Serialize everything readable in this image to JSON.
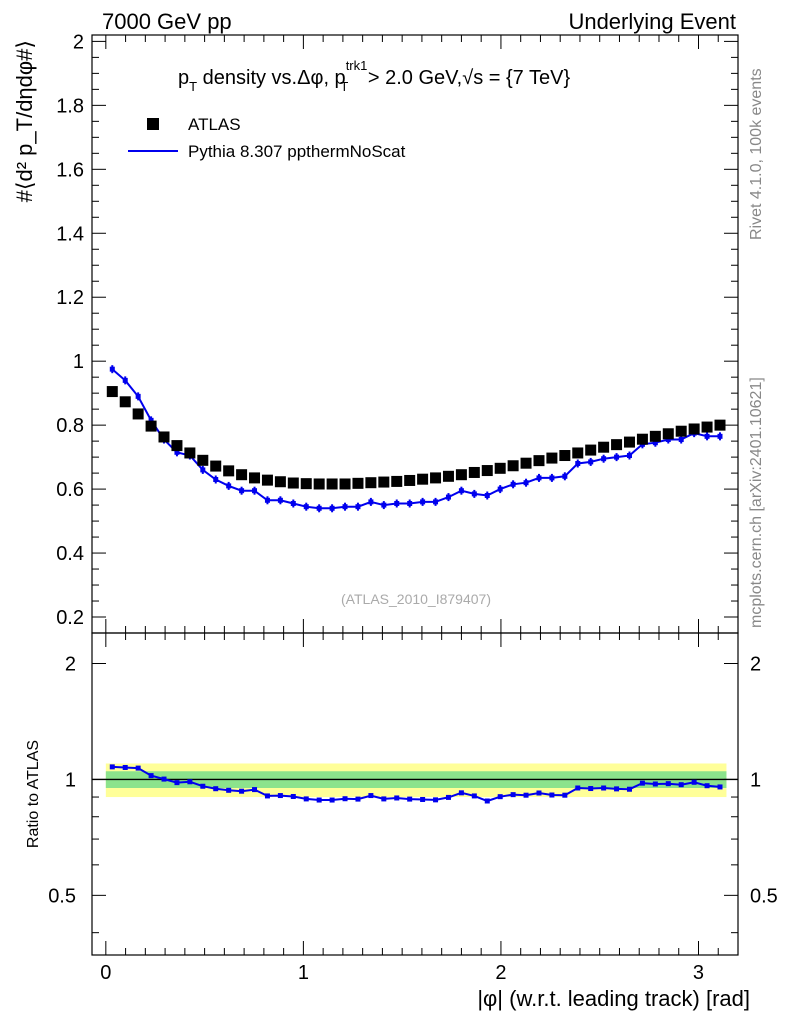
{
  "header": {
    "left": "7000 GeV pp",
    "right": "Underlying Event"
  },
  "side": {
    "rivet": "Rivet 4.1.0,  100k events",
    "mcplots": "mcplots.cern.ch [arXiv:2401.10621]"
  },
  "title": {
    "p": "p",
    "t": "T",
    "mid": " density vs.Δφ, p",
    "sup": "trk1",
    "sub": "T",
    "rest": " > 2.0 GeV,",
    "sqrt": "√s",
    "end": " = {7 TeV}"
  },
  "ylabel_main": "#⟨d² p_T/dηdφ#⟩",
  "ylabel_ratio": "Ratio to ATLAS",
  "xlabel": "|φ| (w.r.t. leading track) [rad]",
  "watermark": "(ATLAS_2010_I879407)",
  "legend": {
    "data": "ATLAS",
    "mc": "Pythia 8.307 ppthermNoScat"
  },
  "colors": {
    "data": "#000000",
    "mc": "#0000ee",
    "band_inner": "#8ce38c",
    "band_outer": "#ffff99"
  },
  "chart_data": {
    "type": "scatter",
    "title": "p_T density vs.Δφ, p_T^trk1 > 2.0 GeV, √s = {7 TeV}",
    "xlabel": "|φ| (w.r.t. leading track) [rad]",
    "ylabel": "#⟨d² p_T/dηdφ#⟩",
    "xlim": [
      -0.07,
      3.2
    ],
    "ylim": [
      0.15,
      2.02
    ],
    "ratio_ylim": [
      0.35,
      2.4
    ],
    "x_ticks": [
      "0",
      "1",
      "2",
      "3"
    ],
    "y_ticks": [
      "0.2",
      "0.4",
      "0.6",
      "0.8",
      "1",
      "1.2",
      "1.4",
      "1.6",
      "1.8",
      "2"
    ],
    "ratio_ticks": [
      "0.5",
      "1",
      "2"
    ],
    "x": [
      0.0327,
      0.0982,
      0.1636,
      0.2291,
      0.2945,
      0.36,
      0.4254,
      0.4909,
      0.5563,
      0.6218,
      0.6872,
      0.7527,
      0.8181,
      0.8836,
      0.949,
      1.0145,
      1.0799,
      1.1454,
      1.2108,
      1.2763,
      1.3417,
      1.4072,
      1.4726,
      1.5381,
      1.6035,
      1.669,
      1.7344,
      1.7999,
      1.8653,
      1.9308,
      1.9962,
      2.0617,
      2.1271,
      2.1926,
      2.258,
      2.3235,
      2.3889,
      2.4544,
      2.5198,
      2.5853,
      2.6507,
      2.7162,
      2.7816,
      2.8471,
      2.9125,
      2.978,
      3.0434,
      3.1089
    ],
    "series": [
      {
        "name": "ATLAS",
        "values": [
          0.905,
          0.873,
          0.835,
          0.797,
          0.763,
          0.736,
          0.713,
          0.69,
          0.672,
          0.657,
          0.645,
          0.635,
          0.628,
          0.623,
          0.619,
          0.617,
          0.616,
          0.616,
          0.616,
          0.618,
          0.62,
          0.622,
          0.624,
          0.627,
          0.631,
          0.635,
          0.64,
          0.645,
          0.652,
          0.658,
          0.665,
          0.673,
          0.681,
          0.689,
          0.697,
          0.705,
          0.713,
          0.722,
          0.731,
          0.739,
          0.747,
          0.756,
          0.765,
          0.773,
          0.781,
          0.788,
          0.794,
          0.8
        ]
      },
      {
        "name": "Pythia 8.307 ppthermNoScat",
        "values": [
          0.975,
          0.94,
          0.89,
          0.815,
          0.755,
          0.715,
          0.705,
          0.66,
          0.63,
          0.61,
          0.595,
          0.595,
          0.565,
          0.565,
          0.555,
          0.545,
          0.54,
          0.54,
          0.545,
          0.545,
          0.56,
          0.55,
          0.555,
          0.555,
          0.56,
          0.56,
          0.575,
          0.595,
          0.585,
          0.58,
          0.6,
          0.615,
          0.62,
          0.635,
          0.635,
          0.64,
          0.68,
          0.685,
          0.695,
          0.7,
          0.705,
          0.74,
          0.745,
          0.755,
          0.755,
          0.775,
          0.765,
          0.765
        ]
      }
    ],
    "ratio": [
      1.078,
      1.074,
      1.07,
      1.023,
      1.002,
      0.981,
      0.986,
      0.96,
      0.946,
      0.937,
      0.932,
      0.941,
      0.906,
      0.908,
      0.903,
      0.89,
      0.884,
      0.884,
      0.891,
      0.889,
      0.908,
      0.89,
      0.895,
      0.889,
      0.887,
      0.885,
      0.898,
      0.923,
      0.906,
      0.879,
      0.902,
      0.913,
      0.91,
      0.922,
      0.911,
      0.91,
      0.95,
      0.947,
      0.95,
      0.945,
      0.943,
      0.978,
      0.973,
      0.975,
      0.969,
      0.983,
      0.963,
      0.956
    ],
    "ratio_band_inner": 0.05,
    "ratio_band_outer": 0.1
  }
}
